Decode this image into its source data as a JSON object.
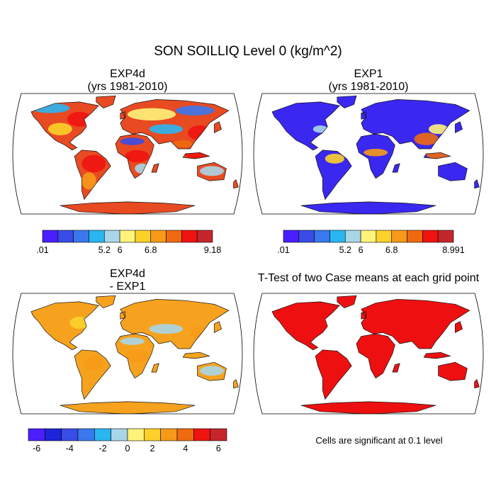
{
  "figure": {
    "title": "SON SOILLIQ Level 0 (kg/m^2)",
    "note": "Cells are significant at 0.1 level"
  },
  "colors": {
    "scale11": [
      "#4a1eff",
      "#3a4ce6",
      "#3a78ee",
      "#2ab6f0",
      "#a8d6e8",
      "#fff37a",
      "#fcd12a",
      "#f79a18",
      "#f06a10",
      "#ef1410",
      "#c4262c"
    ],
    "scale12": [
      "#4a1eff",
      "#1e24d8",
      "#3a4ce6",
      "#3a78ee",
      "#2ab6f0",
      "#a8d6e8",
      "#fff37a",
      "#fcd12a",
      "#f79a18",
      "#f06a10",
      "#ef1410",
      "#c4262c"
    ],
    "land_wet": "#e84a22",
    "land_dry": "#3a28f0",
    "land_diff": "#f6a21e",
    "land_sig": "#ee1010",
    "ocean": "#ffffff"
  },
  "chart_data": [
    {
      "type": "heatmap",
      "panel": "top-left",
      "title": "EXP4d",
      "subtitle": "(yrs 1981-2010)",
      "colorbar": {
        "tick_labels": [
          ".01",
          "",
          "5.2",
          "6",
          "6.8",
          "9.18"
        ],
        "min": 0.01,
        "max": 9.18
      }
    },
    {
      "type": "heatmap",
      "panel": "top-right",
      "title": "EXP1",
      "subtitle": "(yrs 1981-2010)",
      "colorbar": {
        "tick_labels": [
          ".01",
          "",
          "5.2",
          "6",
          "6.8",
          "8.991"
        ],
        "min": 0.01,
        "max": 8.991
      }
    },
    {
      "type": "heatmap",
      "panel": "bottom-left",
      "title": "EXP4d",
      "subtitle": "- EXP1",
      "colorbar": {
        "tick_labels": [
          "-6",
          "-4",
          "-2",
          "0",
          "2",
          "4",
          "6"
        ],
        "min": -7,
        "max": 7
      }
    },
    {
      "type": "heatmap",
      "panel": "bottom-right",
      "title": "T-Test of two Case means at each grid point",
      "subtitle": ""
    }
  ]
}
